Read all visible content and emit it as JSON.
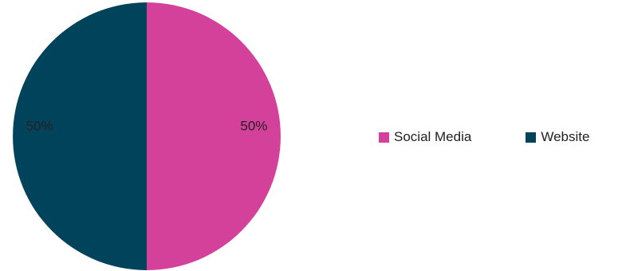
{
  "chart_data": {
    "type": "pie",
    "title": "",
    "categories": [
      "Social Media",
      "Website"
    ],
    "values": [
      50,
      50
    ],
    "labels": [
      "50%",
      "50%"
    ],
    "colors": [
      "#d4419b",
      "#02435c"
    ],
    "legend_placement": "right"
  },
  "legend": {
    "items": [
      {
        "label": "Social Media",
        "color": "#d4419b"
      },
      {
        "label": "Website",
        "color": "#02435c"
      }
    ]
  }
}
